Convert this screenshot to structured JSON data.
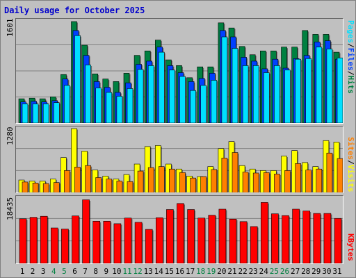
{
  "title": "Daily usage for October 2025",
  "colors": {
    "hits": "#008040",
    "files": "#0040ff",
    "pages": "#00e0ff",
    "visits": "#ffff00",
    "sites": "#ff8000",
    "kbytes": "#ff0000",
    "weekday_label": "#000000",
    "weekend_label": "#008040"
  },
  "panels": {
    "usage": {
      "max_label": "1601",
      "series_labels": [
        "Pages",
        "/",
        "Files",
        "/",
        "Hits"
      ]
    },
    "visits": {
      "max_label": "1280",
      "series_labels": [
        "Sites",
        "/",
        "Visits"
      ]
    },
    "kbytes": {
      "max_label": "18435",
      "series_labels": [
        "KBytes"
      ]
    }
  },
  "chart_data": [
    {
      "type": "bar",
      "categories": [
        "1",
        "2",
        "3",
        "4",
        "5",
        "6",
        "7",
        "8",
        "9",
        "10",
        "11",
        "12",
        "13",
        "14",
        "15",
        "16",
        "17",
        "18",
        "19",
        "20",
        "21",
        "22",
        "23",
        "24",
        "25",
        "26",
        "27",
        "28",
        "29",
        "30",
        "31"
      ],
      "weekend_days": [
        "4",
        "5",
        "11",
        "12",
        "18",
        "19",
        "25",
        "26"
      ],
      "ylim": [
        0,
        1601
      ],
      "series": [
        {
          "name": "Hits",
          "values": [
            380,
            390,
            380,
            410,
            760,
            1590,
            1220,
            770,
            690,
            650,
            780,
            1060,
            1130,
            1300,
            990,
            900,
            710,
            880,
            880,
            1570,
            1490,
            1200,
            1070,
            1130,
            1130,
            1190,
            1190,
            1450,
            1390,
            1390,
            1110
          ]
        },
        {
          "name": "Files",
          "values": [
            330,
            340,
            330,
            350,
            690,
            1450,
            1060,
            650,
            560,
            480,
            630,
            920,
            970,
            1190,
            900,
            790,
            650,
            700,
            780,
            1450,
            1350,
            1030,
            970,
            850,
            1000,
            860,
            1010,
            1060,
            1270,
            1290,
            1000
          ]
        },
        {
          "name": "Pages",
          "values": [
            300,
            300,
            300,
            320,
            590,
            1370,
            910,
            550,
            480,
            420,
            540,
            840,
            900,
            1110,
            830,
            730,
            510,
            590,
            670,
            1350,
            1170,
            900,
            900,
            790,
            900,
            830,
            1000,
            1010,
            1190,
            1160,
            1020
          ]
        }
      ]
    },
    {
      "type": "bar",
      "categories": [
        "1",
        "2",
        "3",
        "4",
        "5",
        "6",
        "7",
        "8",
        "9",
        "10",
        "11",
        "12",
        "13",
        "14",
        "15",
        "16",
        "17",
        "18",
        "19",
        "20",
        "21",
        "22",
        "23",
        "24",
        "25",
        "26",
        "27",
        "28",
        "29",
        "30",
        "31"
      ],
      "ylim": [
        0,
        1280
      ],
      "series": [
        {
          "name": "Visits",
          "values": [
            250,
            230,
            230,
            270,
            700,
            1280,
            830,
            450,
            330,
            270,
            360,
            570,
            920,
            940,
            570,
            470,
            330,
            320,
            520,
            880,
            1020,
            540,
            470,
            440,
            440,
            730,
            840,
            600,
            520,
            1040,
            1010
          ]
        },
        {
          "name": "Sites",
          "values": [
            210,
            190,
            180,
            200,
            440,
            510,
            540,
            300,
            270,
            230,
            220,
            430,
            500,
            520,
            470,
            400,
            290,
            320,
            460,
            690,
            800,
            410,
            390,
            400,
            370,
            440,
            580,
            450,
            470,
            790,
            680
          ]
        }
      ]
    },
    {
      "type": "bar",
      "categories": [
        "1",
        "2",
        "3",
        "4",
        "5",
        "6",
        "7",
        "8",
        "9",
        "10",
        "11",
        "12",
        "13",
        "14",
        "15",
        "16",
        "17",
        "18",
        "19",
        "20",
        "21",
        "22",
        "23",
        "24",
        "25",
        "26",
        "27",
        "28",
        "29",
        "30",
        "31"
      ],
      "ylim": [
        0,
        18435
      ],
      "series": [
        {
          "name": "KBytes",
          "values": [
            12600,
            13000,
            13300,
            10000,
            9700,
            13400,
            17950,
            11900,
            11900,
            11200,
            12800,
            11600,
            9600,
            12900,
            15200,
            16900,
            15200,
            12800,
            13600,
            15300,
            12500,
            11800,
            10400,
            17200,
            14000,
            13500,
            15300,
            14800,
            14100,
            14100,
            12700
          ]
        }
      ]
    }
  ]
}
